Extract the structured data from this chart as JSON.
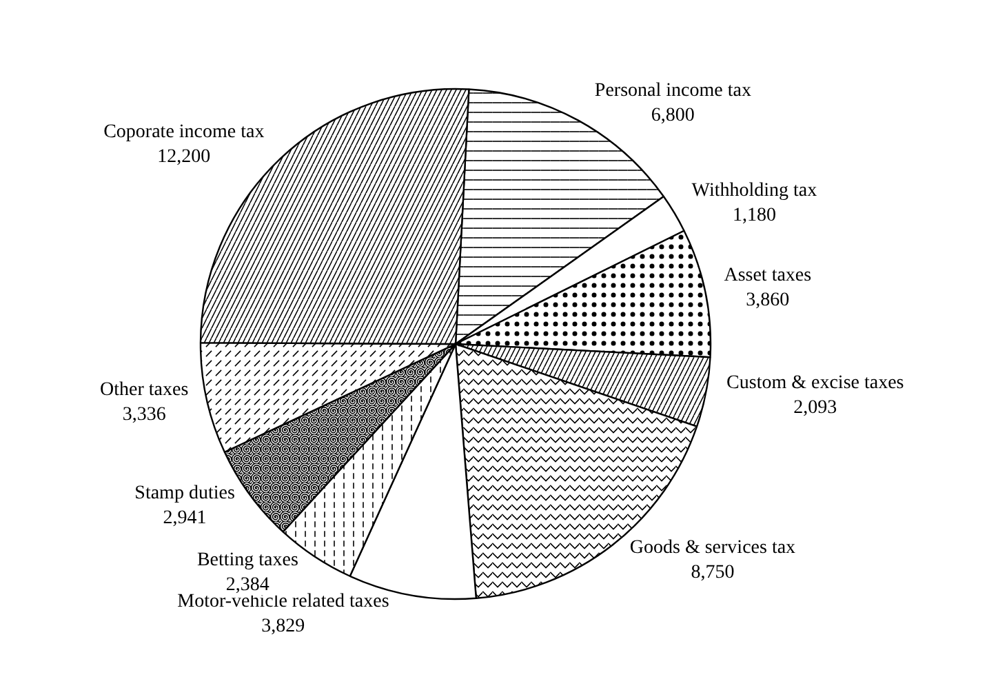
{
  "chart_data": {
    "type": "pie",
    "categories": [
      "Personal income tax",
      "Withholding tax",
      "Asset taxes",
      "Custom & excise taxes",
      "Goods & services tax",
      "Motor-vehicle related taxes",
      "Betting taxes",
      "Stamp duties",
      "Other taxes",
      "Coporate income tax"
    ],
    "values": [
      6800,
      1180,
      3860,
      2093,
      8750,
      3829,
      2384,
      2941,
      3336,
      12200
    ],
    "colors": [
      "#ffffff",
      "#ffffff",
      "#ffffff",
      "#ffffff",
      "#ffffff",
      "#ffffff",
      "#ffffff",
      "#ffffff",
      "#ffffff",
      "#ffffff"
    ],
    "value_labels": [
      "6,800",
      "1,180",
      "3,860",
      "2,093",
      "8,750",
      "3,829",
      "2,384",
      "2,941",
      "3,336",
      "12,200"
    ]
  }
}
